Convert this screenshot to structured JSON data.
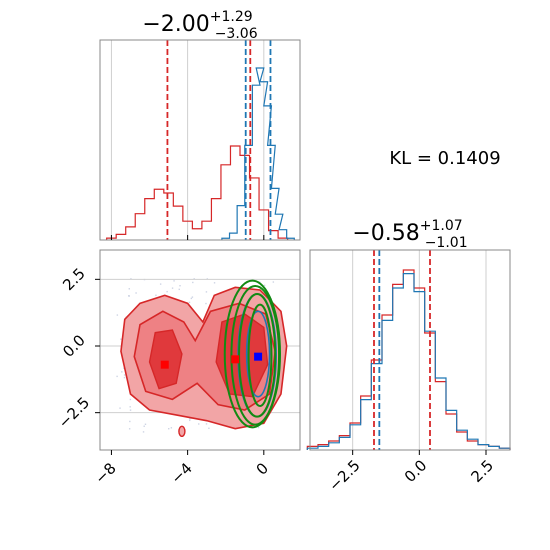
{
  "kl_label": "KL = 0.1409",
  "colors": {
    "red": "#d62728",
    "blue": "#1f77b4",
    "green": "#138a13",
    "fill_light": "#f2a5a6",
    "fill_dark": "#e0393c"
  },
  "chart_data": [
    {
      "type": "histogram",
      "panel": "top-left",
      "title_main": "−2.00",
      "title_sup": "+1.29",
      "title_sub": "−3.06",
      "xlim": [
        -8.6,
        1.9
      ],
      "quantile_lines_red": [
        -5.06,
        -0.71
      ],
      "quantile_lines_blue": [
        -0.95,
        0.35
      ],
      "series": [
        {
          "name": "",
          "color": "red",
          "x": [
            -8.0,
            -7.5,
            -7.0,
            -6.5,
            -6.0,
            -5.5,
            -5.0,
            -4.5,
            -4.0,
            -3.5,
            -3.0,
            -2.5,
            -2.0,
            -1.5,
            -1.0,
            -0.5,
            0.0,
            0.5,
            1.0
          ],
          "y": [
            0.01,
            0.03,
            0.07,
            0.14,
            0.22,
            0.27,
            0.25,
            0.18,
            0.1,
            0.06,
            0.1,
            0.22,
            0.4,
            0.5,
            0.45,
            0.33,
            0.16,
            0.05,
            0.01
          ]
        },
        {
          "name": "",
          "color": "blue",
          "x": [
            -2.0,
            -1.6,
            -1.2,
            -0.8,
            -0.4,
            -0.2,
            0.0,
            0.2,
            0.4,
            0.6,
            0.8,
            1.0,
            1.4
          ],
          "y": [
            0.01,
            0.04,
            0.2,
            0.55,
            0.9,
            1.0,
            0.92,
            0.78,
            0.55,
            0.3,
            0.15,
            0.06,
            0.01
          ]
        }
      ]
    },
    {
      "type": "contour",
      "panel": "bottom-left",
      "xlim": [
        -8.6,
        1.9
      ],
      "ylim": [
        -3.9,
        3.6
      ],
      "xticks": [
        -8,
        -4,
        0
      ],
      "xticklabels": [
        "−8",
        "−4",
        "0"
      ],
      "yticks": [
        -2.5,
        0.0,
        2.5
      ],
      "yticklabels": [
        "−2.5",
        "0.0",
        "2.5"
      ],
      "gridlines_y": [
        -2.5,
        0.0,
        2.5
      ],
      "red_markers": [
        [
          -5.2,
          -0.7
        ],
        [
          -1.5,
          -0.5
        ]
      ],
      "blue_marker": [
        -0.3,
        -0.4
      ],
      "green_ellipses": [
        {
          "cx": -0.45,
          "cy": -0.35,
          "rx": 1.25,
          "ry": 2.6
        },
        {
          "cx": -0.35,
          "cy": -0.35,
          "rx": 0.95,
          "ry": 2.3
        },
        {
          "cx": -0.2,
          "cy": -0.35,
          "rx": 0.6,
          "ry": 1.9
        },
        {
          "cx": -0.6,
          "cy": -0.3,
          "rx": 1.45,
          "ry": 2.75
        }
      ]
    },
    {
      "type": "histogram",
      "panel": "bottom-right",
      "title_main": "−0.58",
      "title_sup": "+1.07",
      "title_sub": "−1.01",
      "xlim": [
        -4.1,
        3.4
      ],
      "xticks": [
        -2.5,
        0.0,
        2.5
      ],
      "xticklabels": [
        "−2.5",
        "0.0",
        "2.5"
      ],
      "gridlines_x": [
        -2.5,
        0.0,
        2.5
      ],
      "quantile_lines_red": [
        -1.7,
        0.4
      ],
      "quantile_lines_blue": [
        -1.5
      ],
      "series": [
        {
          "name": "",
          "color": "red",
          "x": [
            -4.0,
            -3.6,
            -3.2,
            -2.8,
            -2.4,
            -2.0,
            -1.6,
            -1.2,
            -0.8,
            -0.4,
            0.0,
            0.4,
            0.8,
            1.2,
            1.6,
            2.0,
            2.4,
            2.8,
            3.2
          ],
          "y": [
            0.02,
            0.03,
            0.05,
            0.08,
            0.15,
            0.3,
            0.5,
            0.75,
            0.92,
            1.0,
            0.9,
            0.65,
            0.38,
            0.2,
            0.1,
            0.05,
            0.03,
            0.02,
            0.01
          ]
        },
        {
          "name": "",
          "color": "blue",
          "x": [
            -4.0,
            -3.6,
            -3.2,
            -2.8,
            -2.4,
            -2.0,
            -1.6,
            -1.2,
            -0.8,
            -0.4,
            0.0,
            0.4,
            0.8,
            1.2,
            1.6,
            2.0,
            2.4,
            2.8,
            3.2
          ],
          "y": [
            0.01,
            0.02,
            0.04,
            0.07,
            0.14,
            0.28,
            0.48,
            0.72,
            0.9,
            0.98,
            0.88,
            0.66,
            0.4,
            0.22,
            0.11,
            0.06,
            0.03,
            0.02,
            0.01
          ]
        }
      ]
    }
  ]
}
